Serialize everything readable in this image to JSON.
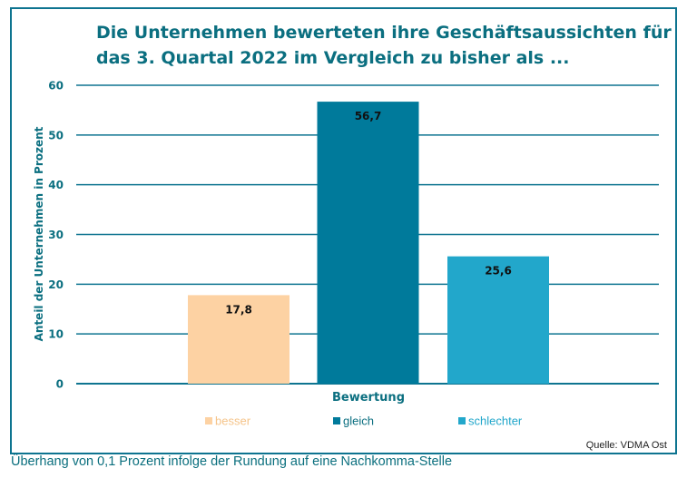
{
  "chart_data": {
    "type": "bar",
    "title_lines": [
      "Die Unternehmen bewerteten ihre Geschäftsaussichten für",
      "das 3. Quartal 2022 im Vergleich zu bisher als ..."
    ],
    "xlabel": "Bewertung",
    "ylabel": "Anteil der Unternehmen in Prozent",
    "ylim": [
      0,
      60
    ],
    "yticks": [
      0,
      10,
      20,
      30,
      40,
      50,
      60
    ],
    "grid": true,
    "legend_placement": "bottom",
    "categories": [
      "besser",
      "gleich",
      "schlechter"
    ],
    "values": [
      17.8,
      56.7,
      25.6
    ],
    "value_labels": [
      "17,8",
      "56,7",
      "25,6"
    ],
    "colors": [
      "#fdd2a3",
      "#007a9b",
      "#22a7cb"
    ],
    "source": "Quelle: VDMA Ost"
  },
  "footnote": "Überhang von 0,1 Prozent infolge der Rundung auf eine Nachkomma-Stelle",
  "colors": {
    "title": "#0b6f80",
    "grid": "#0e7490",
    "legend_text": [
      "#f5c48a",
      "#0b6f80",
      "#22a7cb"
    ]
  }
}
